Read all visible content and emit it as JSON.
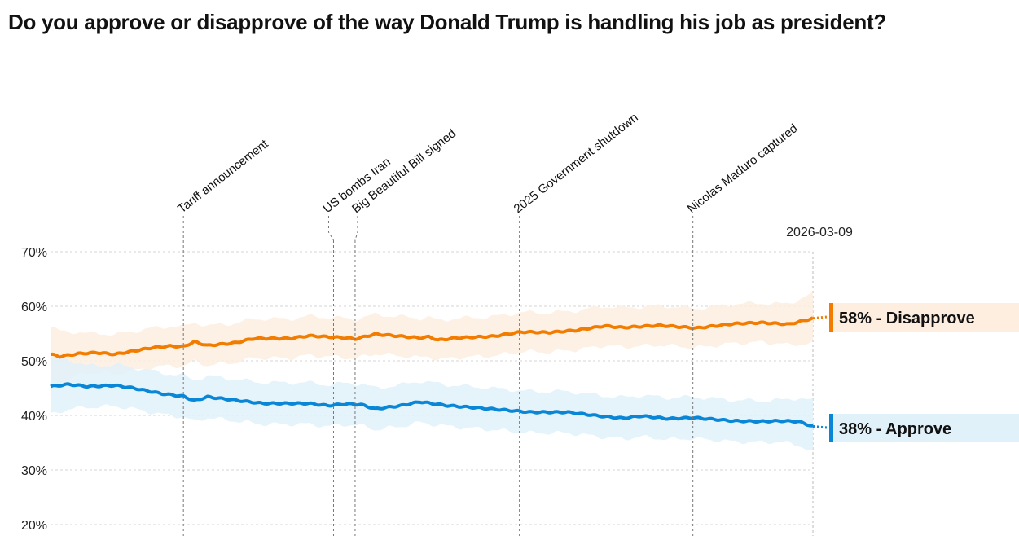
{
  "title": "Do you approve or disapprove of the way Donald Trump is handling his job as president?",
  "chart_data": {
    "type": "line",
    "x_unit": "days since 2025-01-20",
    "x_start_date": "2025-01-20",
    "end_date_label": "2026-03-09",
    "xlim": [
      0,
      413
    ],
    "ylim": [
      20,
      70
    ],
    "yticks": [
      20,
      30,
      40,
      50,
      60,
      70
    ],
    "ytick_labels": [
      "20%",
      "30%",
      "40%",
      "50%",
      "60%",
      "70%"
    ],
    "grid": true,
    "events": [
      {
        "label": "Tariff announcement",
        "day": 72
      },
      {
        "label": "US bombs Iran",
        "day": 152
      },
      {
        "label": "Big Beautiful Bill signed",
        "day": 165
      },
      {
        "label": "2025 Government shutdown",
        "day": 254
      },
      {
        "label": "Nicolas Maduro captured",
        "day": 348
      }
    ],
    "series": [
      {
        "name": "Disapprove",
        "color": "#f27c00",
        "band_color": "#fdeee0",
        "final_label": "58% - Disapprove",
        "ci_half_width": 3.6,
        "x": [
          0,
          5,
          15,
          25,
          35,
          45,
          55,
          65,
          72,
          78,
          85,
          100,
          110,
          130,
          140,
          160,
          165,
          176,
          200,
          205,
          210,
          220,
          240,
          255,
          270,
          285,
          300,
          310,
          330,
          350,
          370,
          385,
          400,
          413
        ],
        "y": [
          51.2,
          50.8,
          51.3,
          51.5,
          51.2,
          51.8,
          52.4,
          52.7,
          52.6,
          53.5,
          52.8,
          53.3,
          54.1,
          54.1,
          54.6,
          54.2,
          54.0,
          54.9,
          54.2,
          54.4,
          53.8,
          54.2,
          54.5,
          55.3,
          55.2,
          55.6,
          56.4,
          56.1,
          56.5,
          56.0,
          56.8,
          57.0,
          56.7,
          57.8
        ]
      },
      {
        "name": "Approve",
        "color": "#0a86d6",
        "band_color": "#e1f1fa",
        "final_label": "38% - Approve",
        "ci_half_width": 3.8,
        "x": [
          0,
          10,
          20,
          35,
          45,
          60,
          72,
          78,
          85,
          100,
          115,
          140,
          150,
          160,
          168,
          176,
          190,
          200,
          215,
          235,
          260,
          280,
          300,
          310,
          320,
          335,
          348,
          370,
          385,
          395,
          405,
          413
        ],
        "y": [
          45.3,
          45.7,
          45.3,
          45.5,
          45.0,
          44.0,
          43.5,
          42.7,
          43.4,
          42.8,
          42.2,
          42.2,
          41.8,
          42.1,
          42.0,
          41.2,
          41.8,
          42.5,
          41.8,
          41.3,
          40.6,
          40.6,
          39.8,
          39.5,
          39.9,
          39.4,
          39.6,
          39.0,
          38.9,
          39.0,
          38.9,
          38.0
        ]
      }
    ]
  }
}
